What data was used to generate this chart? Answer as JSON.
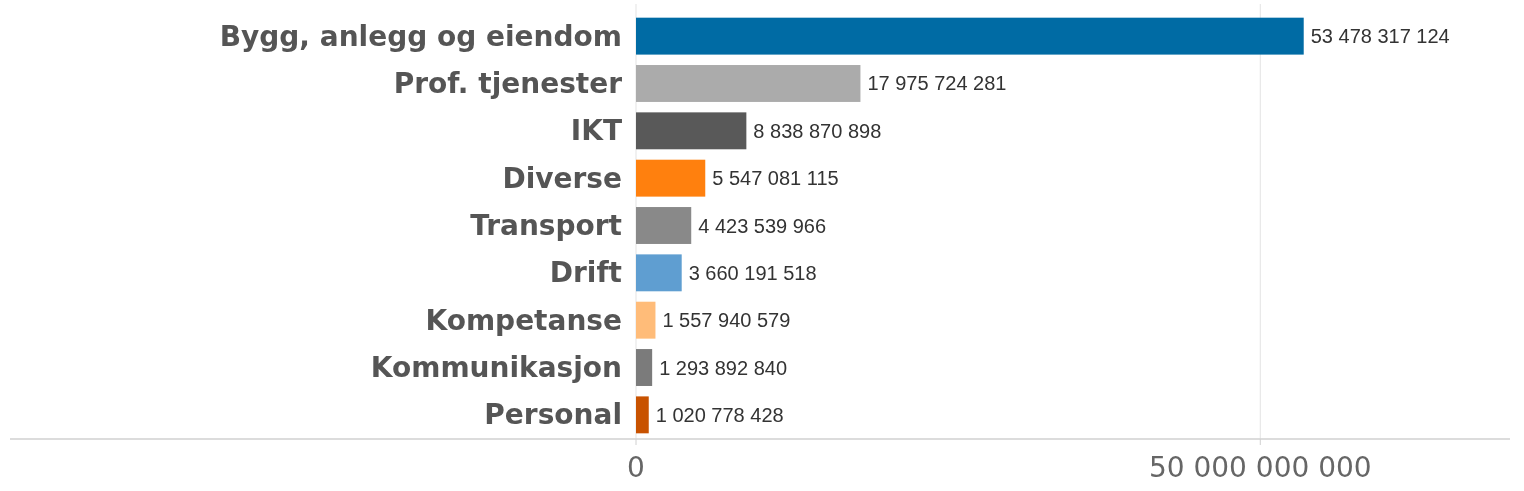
{
  "chart_data": {
    "type": "bar",
    "orientation": "horizontal",
    "categories": [
      "Bygg, anlegg og eiendom",
      "Prof. tjenester",
      "IKT",
      "Diverse",
      "Transport",
      "Drift",
      "Kompetanse",
      "Kommunikasjon",
      "Personal"
    ],
    "values": [
      53478317124,
      17975724281,
      8838870898,
      5547081115,
      4423539966,
      3660191518,
      1557940579,
      1293892840,
      1020778428
    ],
    "colors": [
      "#006ba4",
      "#ababab",
      "#595959",
      "#ff800e",
      "#898989",
      "#5f9ed1",
      "#ffbc79",
      "#7b7b7b",
      "#c85200"
    ],
    "value_labels": [
      "53 478 317 124",
      "17 975 724 281",
      "8 838 870 898",
      "5 547 081 115",
      "4 423 539 966",
      "3 660 191 518",
      "1 557 940 579",
      "1 293 892 840",
      "1 020 778 428"
    ],
    "xlim": [
      0,
      70000000000
    ],
    "xticks": [
      0,
      {
        "value": 50000000000,
        "label": "50 000 000 000"
      }
    ],
    "grid": "x"
  }
}
